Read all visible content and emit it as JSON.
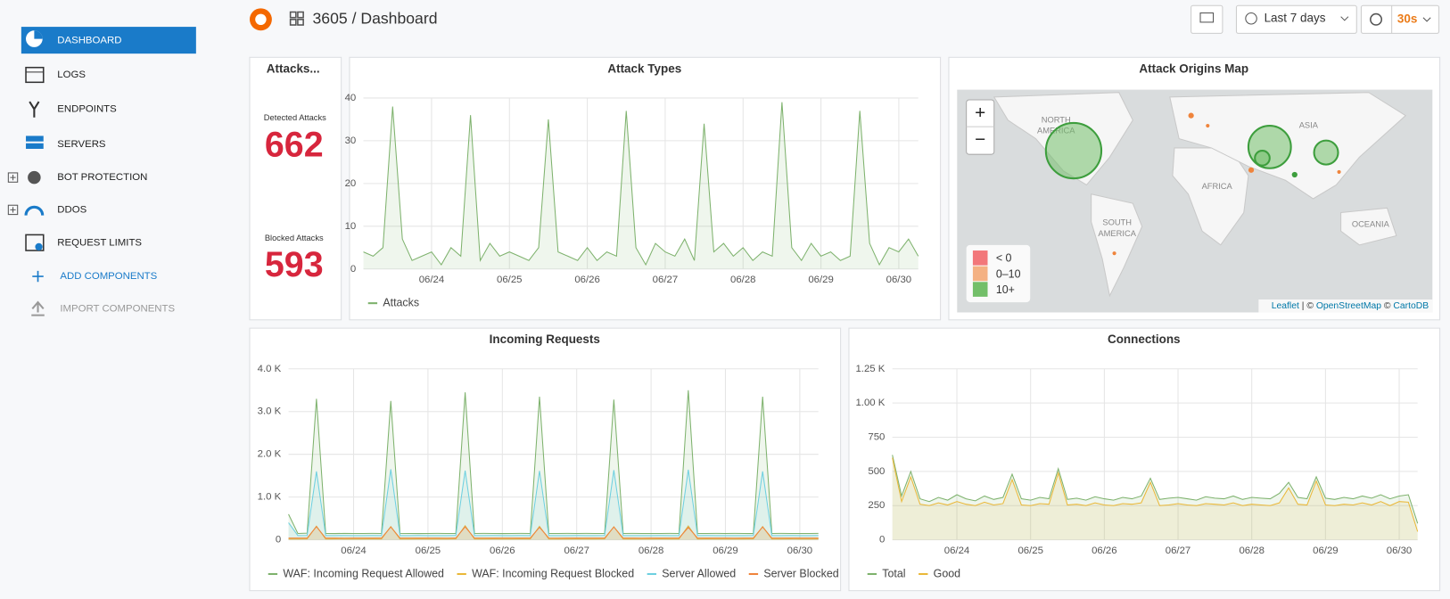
{
  "header": {
    "title": "3605 / Dashboard",
    "time_range": "Last 7 days",
    "refresh": "30s"
  },
  "sidebar": {
    "items": [
      "DASHBOARD",
      "LOGS",
      "ENDPOINTS",
      "SERVERS",
      "BOT PROTECTION",
      "DDOS",
      "REQUEST LIMITS"
    ],
    "add": "ADD COMPONENTS",
    "import": "IMPORT COMPONENTS"
  },
  "stat_panel": {
    "title": "Attacks...",
    "stats": [
      {
        "label": "Detected Attacks",
        "value": 662
      },
      {
        "label": "Blocked Attacks",
        "value": 593
      }
    ]
  },
  "map": {
    "title": "Attack Origins Map",
    "zoom_in": "+",
    "zoom_out": "−",
    "labels": [
      [
        "NORTH",
        "AMERICA"
      ],
      [
        "ASIA"
      ],
      [
        "AFRICA"
      ],
      [
        "SOUTH",
        "AMERICA"
      ],
      [
        "OCEANIA"
      ]
    ],
    "legend": [
      {
        "label": "< 0",
        "color": "#f2777a"
      },
      {
        "label": "0–10",
        "color": "#f4b183"
      },
      {
        "label": "10+",
        "color": "#73bf69"
      }
    ],
    "attribution": {
      "leaflet": "Leaflet",
      "sep": "| ©",
      "osm": "OpenStreetMap",
      "copy": "©",
      "carto": "CartoDB"
    }
  },
  "chart_data": [
    {
      "type": "line",
      "title": "Attack Types",
      "area": true,
      "grid": true,
      "categories": [
        null,
        null,
        null,
        null,
        null,
        null,
        null,
        "06/24",
        null,
        null,
        null,
        null,
        null,
        null,
        null,
        "06/25",
        null,
        null,
        null,
        null,
        null,
        null,
        null,
        "06/26",
        null,
        null,
        null,
        null,
        null,
        null,
        null,
        "06/27",
        null,
        null,
        null,
        null,
        null,
        null,
        null,
        "06/28",
        null,
        null,
        null,
        null,
        null,
        null,
        null,
        "06/29",
        null,
        null,
        null,
        null,
        null,
        null,
        null,
        "06/30",
        null,
        null
      ],
      "ylim": [
        0,
        40
      ],
      "yticks": [
        0,
        10,
        20,
        30,
        40
      ],
      "series": [
        {
          "name": "Attacks",
          "color": "#7eb26d",
          "values": [
            4,
            3,
            5,
            38,
            7,
            2,
            3,
            4,
            1,
            5,
            3,
            36,
            2,
            6,
            3,
            4,
            3,
            2,
            5,
            35,
            4,
            3,
            2,
            5,
            2,
            4,
            3,
            37,
            5,
            1,
            6,
            4,
            3,
            7,
            2,
            34,
            4,
            6,
            3,
            5,
            2,
            4,
            3,
            39,
            5,
            2,
            6,
            3,
            4,
            2,
            3,
            37,
            6,
            1,
            5,
            4,
            7,
            3
          ]
        }
      ]
    },
    {
      "type": "line",
      "title": "Incoming Requests",
      "area": true,
      "grid": true,
      "categories": [
        null,
        null,
        null,
        null,
        null,
        null,
        null,
        "06/24",
        null,
        null,
        null,
        null,
        null,
        null,
        null,
        "06/25",
        null,
        null,
        null,
        null,
        null,
        null,
        null,
        "06/26",
        null,
        null,
        null,
        null,
        null,
        null,
        null,
        "06/27",
        null,
        null,
        null,
        null,
        null,
        null,
        null,
        "06/28",
        null,
        null,
        null,
        null,
        null,
        null,
        null,
        "06/29",
        null,
        null,
        null,
        null,
        null,
        null,
        null,
        "06/30",
        null,
        null
      ],
      "ylim": [
        0,
        4000
      ],
      "yticks": [
        0,
        {
          "value": 1000,
          "label": "1.0 K"
        },
        {
          "value": 2000,
          "label": "2.0 K"
        },
        {
          "value": 3000,
          "label": "3.0 K"
        },
        {
          "value": 4000,
          "label": "4.0 K"
        }
      ],
      "series": [
        {
          "name": "WAF: Incoming Request Allowed",
          "color": "#7eb26d",
          "values": [
            600,
            150,
            155,
            3300,
            150,
            148,
            152,
            150,
            150,
            152,
            149,
            3250,
            151,
            150,
            148,
            150,
            152,
            150,
            149,
            3450,
            150,
            151,
            150,
            148,
            150,
            152,
            150,
            3350,
            149,
            150,
            152,
            150,
            151,
            150,
            149,
            3280,
            150,
            152,
            150,
            149,
            150,
            151,
            150,
            3500,
            150,
            149,
            151,
            150,
            152,
            150,
            148,
            3350,
            150,
            151,
            150,
            149,
            150,
            151
          ]
        },
        {
          "name": "WAF: Incoming Request Blocked",
          "color": "#eab839",
          "values": [
            20,
            20,
            22,
            320,
            20,
            21,
            20,
            19,
            20,
            21,
            20,
            310,
            20,
            20,
            21,
            20,
            20,
            19,
            21,
            330,
            20,
            20,
            21,
            20,
            20,
            21,
            20,
            315,
            20,
            19,
            20,
            21,
            20,
            20,
            21,
            305,
            20,
            20,
            19,
            20,
            21,
            20,
            20,
            325,
            20,
            21,
            20,
            20,
            19,
            20,
            21,
            310,
            20,
            20,
            21,
            20,
            20,
            21
          ]
        },
        {
          "name": "Server Allowed",
          "color": "#6ed0e0",
          "values": [
            400,
            100,
            102,
            1600,
            100,
            99,
            101,
            100,
            100,
            101,
            99,
            1650,
            100,
            100,
            101,
            100,
            100,
            99,
            101,
            1620,
            100,
            100,
            101,
            100,
            100,
            101,
            100,
            1610,
            100,
            99,
            100,
            101,
            100,
            100,
            101,
            1630,
            100,
            100,
            99,
            100,
            101,
            100,
            100,
            1640,
            100,
            101,
            100,
            100,
            99,
            100,
            101,
            1600,
            100,
            100,
            101,
            100,
            100,
            101
          ]
        },
        {
          "name": "Server Blocked",
          "color": "#ef843c",
          "values": [
            40,
            40,
            41,
            310,
            40,
            40,
            39,
            40,
            40,
            41,
            40,
            300,
            40,
            40,
            41,
            40,
            40,
            39,
            41,
            305,
            40,
            40,
            41,
            40,
            40,
            41,
            40,
            295,
            40,
            39,
            40,
            41,
            40,
            40,
            41,
            300,
            40,
            40,
            39,
            40,
            41,
            40,
            40,
            290,
            40,
            41,
            40,
            40,
            39,
            40,
            41,
            300,
            40,
            40,
            41,
            40,
            40,
            41
          ]
        }
      ]
    },
    {
      "type": "line",
      "title": "Connections",
      "area": true,
      "grid": true,
      "categories": [
        null,
        null,
        null,
        null,
        null,
        null,
        null,
        "06/24",
        null,
        null,
        null,
        null,
        null,
        null,
        null,
        "06/25",
        null,
        null,
        null,
        null,
        null,
        null,
        null,
        "06/26",
        null,
        null,
        null,
        null,
        null,
        null,
        null,
        "06/27",
        null,
        null,
        null,
        null,
        null,
        null,
        null,
        "06/28",
        null,
        null,
        null,
        null,
        null,
        null,
        null,
        "06/29",
        null,
        null,
        null,
        null,
        null,
        null,
        null,
        "06/30",
        null,
        null
      ],
      "ylim": [
        0,
        1250
      ],
      "yticks": [
        0,
        250,
        500,
        750,
        {
          "value": 1000,
          "label": "1.00 K"
        },
        {
          "value": 1250,
          "label": "1.25 K"
        }
      ],
      "series": [
        {
          "name": "Total",
          "color": "#7eb26d",
          "values": [
            620,
            320,
            500,
            300,
            280,
            310,
            290,
            330,
            300,
            285,
            320,
            295,
            310,
            480,
            300,
            290,
            310,
            300,
            520,
            295,
            305,
            290,
            315,
            300,
            290,
            310,
            300,
            320,
            450,
            295,
            305,
            310,
            300,
            290,
            315,
            305,
            300,
            320,
            295,
            310,
            305,
            300,
            340,
            420,
            310,
            300,
            460,
            305,
            295,
            310,
            300,
            320,
            305,
            330,
            300,
            320,
            330,
            120
          ]
        },
        {
          "name": "Good",
          "color": "#eab839",
          "values": [
            600,
            280,
            460,
            260,
            250,
            270,
            255,
            280,
            260,
            250,
            275,
            255,
            265,
            440,
            255,
            250,
            265,
            260,
            490,
            255,
            260,
            250,
            270,
            255,
            250,
            265,
            260,
            270,
            420,
            250,
            255,
            265,
            255,
            250,
            265,
            260,
            255,
            270,
            250,
            260,
            255,
            250,
            270,
            380,
            260,
            255,
            430,
            255,
            250,
            260,
            255,
            270,
            255,
            280,
            250,
            280,
            275,
            60
          ]
        }
      ]
    }
  ]
}
